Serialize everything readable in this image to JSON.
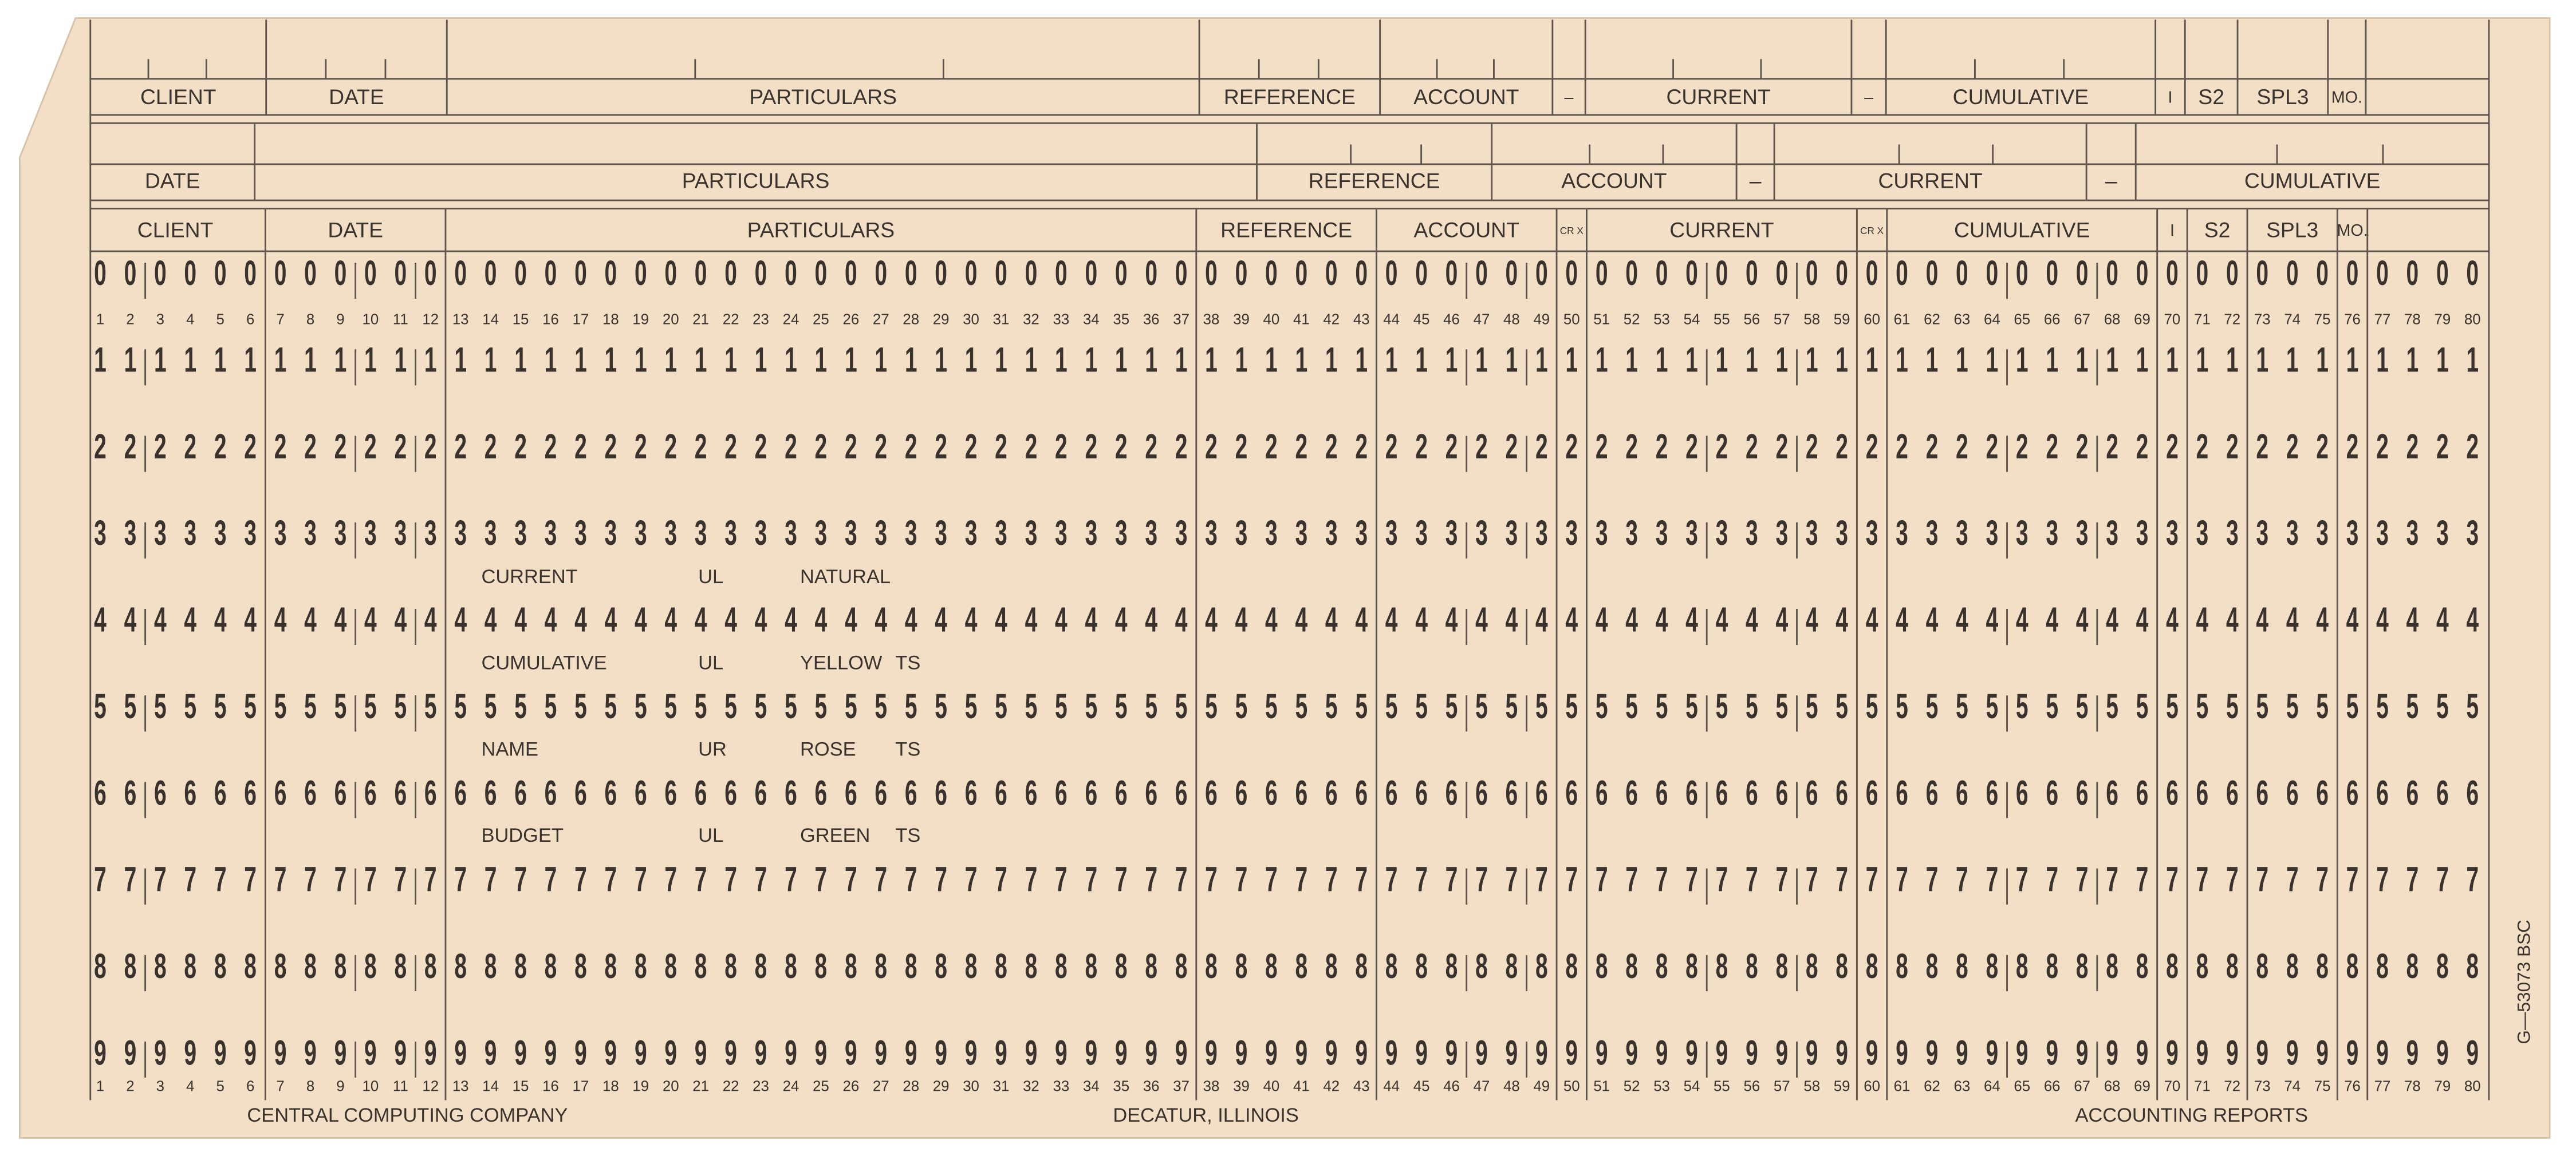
{
  "header_row_1": [
    "CLIENT",
    "DATE",
    "PARTICULARS",
    "REFERENCE",
    "ACCOUNT",
    "–",
    "CURRENT",
    "–",
    "CUMULATIVE",
    "I",
    "S2",
    "SPL3",
    "MO."
  ],
  "header_row_2": [
    "DATE",
    "PARTICULARS",
    "REFERENCE",
    "ACCOUNT",
    "–",
    "CURRENT",
    "–",
    "CUMULATIVE"
  ],
  "field_header": [
    "CLIENT",
    "DATE",
    "PARTICULARS",
    "REFERENCE",
    "ACCOUNT",
    "CR X",
    "CURRENT",
    "CR X",
    "CUMULATIVE",
    "I",
    "S2",
    "SPL3",
    "MO."
  ],
  "punch_rows": [
    0,
    1,
    2,
    3,
    4,
    5,
    6,
    7,
    8,
    9
  ],
  "column_numbers": [
    1,
    2,
    3,
    4,
    5,
    6,
    7,
    8,
    9,
    10,
    11,
    12,
    13,
    14,
    15,
    16,
    17,
    18,
    19,
    20,
    21,
    22,
    23,
    24,
    25,
    26,
    27,
    28,
    29,
    30,
    31,
    32,
    33,
    34,
    35,
    36,
    37,
    38,
    39,
    40,
    41,
    42,
    43,
    44,
    45,
    46,
    47,
    48,
    49,
    50,
    51,
    52,
    53,
    54,
    55,
    56,
    57,
    58,
    59,
    60,
    61,
    62,
    63,
    64,
    65,
    66,
    67,
    68,
    69,
    70,
    71,
    72,
    73,
    74,
    75,
    76,
    77,
    78,
    79,
    80
  ],
  "notes": [
    [
      "CURRENT",
      "UL",
      "NATURAL"
    ],
    [
      "CUMULATIVE",
      "UL",
      "YELLOW",
      "TS"
    ],
    [
      "NAME",
      "UR",
      "ROSE",
      "TS"
    ],
    [
      "BUDGET",
      "UL",
      "GREEN",
      "TS"
    ]
  ],
  "footer": [
    "CENTRAL  COMPUTING  COMPANY",
    "DECATUR, ILLINOIS",
    "ACCOUNTING  REPORTS"
  ],
  "form_number": "G—53073  BSC"
}
